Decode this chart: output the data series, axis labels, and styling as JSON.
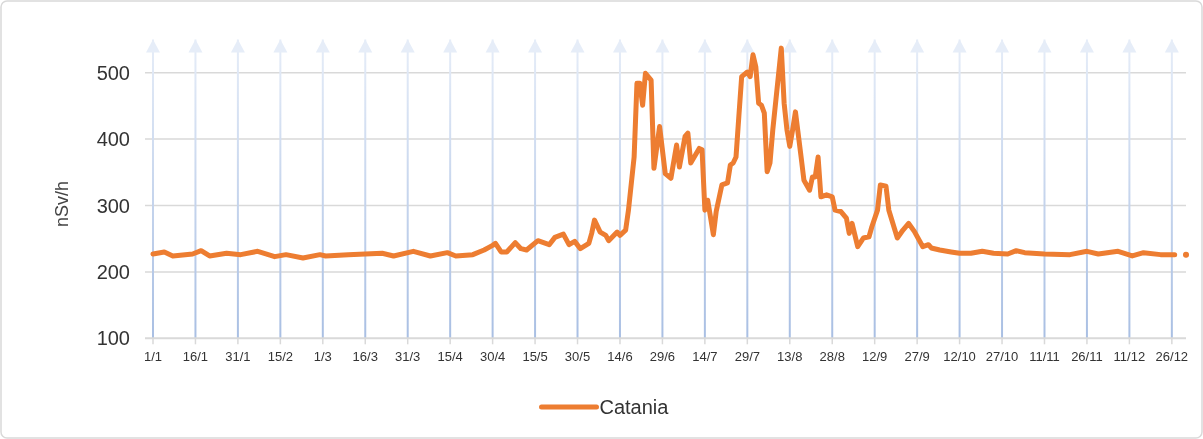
{
  "chart_data": {
    "type": "line",
    "ylabel": "nSv/h",
    "legend": "bottom",
    "grid": true,
    "line_style": "solid",
    "marker": "none",
    "xlim": [
      "--01-01",
      "--12-31"
    ],
    "ylim": [
      100,
      550
    ],
    "yticks": [
      100,
      200,
      300,
      400,
      500
    ],
    "xticks": [
      {
        "value": "--01-01",
        "label": "1/1"
      },
      {
        "value": "--01-16",
        "label": "16/1"
      },
      {
        "value": "--01-31",
        "label": "31/1"
      },
      {
        "value": "--02-15",
        "label": "15/2"
      },
      {
        "value": "--03-01",
        "label": "1/3"
      },
      {
        "value": "--03-16",
        "label": "16/3"
      },
      {
        "value": "--03-31",
        "label": "31/3"
      },
      {
        "value": "--04-15",
        "label": "15/4"
      },
      {
        "value": "--04-30",
        "label": "30/4"
      },
      {
        "value": "--05-15",
        "label": "15/5"
      },
      {
        "value": "--05-30",
        "label": "30/5"
      },
      {
        "value": "--06-14",
        "label": "14/6"
      },
      {
        "value": "--06-29",
        "label": "29/6"
      },
      {
        "value": "--07-14",
        "label": "14/7"
      },
      {
        "value": "--07-29",
        "label": "29/7"
      },
      {
        "value": "--08-13",
        "label": "13/8"
      },
      {
        "value": "--08-28",
        "label": "28/8"
      },
      {
        "value": "--09-12",
        "label": "12/9"
      },
      {
        "value": "--09-27",
        "label": "27/9"
      },
      {
        "value": "--10-12",
        "label": "12/10"
      },
      {
        "value": "--10-27",
        "label": "27/10"
      },
      {
        "value": "--11-11",
        "label": "11/11"
      },
      {
        "value": "--11-26",
        "label": "26/11"
      },
      {
        "value": "--12-11",
        "label": "11/12"
      },
      {
        "value": "--12-26",
        "label": "26/12"
      }
    ],
    "x": [
      "--01-01",
      "--01-05",
      "--01-08",
      "--01-15",
      "--01-18",
      "--01-21",
      "--01-27",
      "--02-01",
      "--02-07",
      "--02-13",
      "--02-17",
      "--02-23",
      "--02-29",
      "--03-02",
      "--03-10",
      "--03-22",
      "--03-26",
      "--04-02",
      "--04-08",
      "--04-14",
      "--04-17",
      "--04-23",
      "--04-27",
      "--04-30",
      "--05-01",
      "--05-03",
      "--05-05",
      "--05-08",
      "--05-10",
      "--05-12",
      "--05-16",
      "--05-20",
      "--05-22",
      "--05-25",
      "--05-27",
      "--05-29",
      "--05-31",
      "--06-03",
      "--06-04",
      "--06-05",
      "--06-07",
      "--06-09",
      "--06-10",
      "--06-13",
      "--06-14",
      "--06-16",
      "--06-17",
      "--06-19",
      "--06-20",
      "--06-21",
      "--06-22",
      "--06-23",
      "--06-25",
      "--06-26",
      "--06-28",
      "--06-30",
      "--07-02",
      "--07-04",
      "--07-05",
      "--07-07",
      "--07-08",
      "--07-09",
      "--07-12",
      "--07-13",
      "--07-14",
      "--07-15",
      "--07-17",
      "--07-18",
      "--07-20",
      "--07-22",
      "--07-23",
      "--07-24",
      "--07-25",
      "--07-26",
      "--07-27",
      "--07-29",
      "--07-30",
      "--07-31",
      "--08-01",
      "--08-02",
      "--08-03",
      "--08-04",
      "--08-05",
      "--08-06",
      "--08-07",
      "--08-09",
      "--08-10",
      "--08-11",
      "--08-12",
      "--08-13",
      "--08-14",
      "--08-15",
      "--08-17",
      "--08-18",
      "--08-20",
      "--08-21",
      "--08-22",
      "--08-23",
      "--08-24",
      "--08-26",
      "--08-28",
      "--08-29",
      "--08-31",
      "--09-02",
      "--09-03",
      "--09-04",
      "--09-06",
      "--09-08",
      "--09-10",
      "--09-11",
      "--09-13",
      "--09-14",
      "--09-16",
      "--09-17",
      "--09-20",
      "--09-22",
      "--09-24",
      "--09-26",
      "--09-29",
      "--10-01",
      "--10-02",
      "--10-05",
      "--10-09",
      "--10-12",
      "--10-16",
      "--10-20",
      "--10-24",
      "--10-29",
      "--11-01",
      "--11-04",
      "--11-11",
      "--11-20",
      "--11-26",
      "--11-30",
      "--12-07",
      "--12-12",
      "--12-16",
      "--12-22",
      "--12-27",
      "--12-29",
      "--12-31"
    ],
    "series": [
      {
        "name": "Catania",
        "color": "#ed7d31",
        "values": [
          227,
          230,
          224,
          227,
          232,
          224,
          228,
          226,
          231,
          223,
          226,
          221,
          226,
          224,
          226,
          228,
          224,
          231,
          224,
          229,
          224,
          226,
          233,
          240,
          243,
          230,
          230,
          244,
          235,
          233,
          247,
          241,
          252,
          257,
          241,
          246,
          235,
          243,
          258,
          278,
          260,
          255,
          247,
          260,
          255,
          263,
          293,
          373,
          484,
          484,
          451,
          499,
          489,
          356,
          419,
          348,
          341,
          391,
          358,
          404,
          409,
          364,
          386,
          384,
          293,
          308,
          256,
          291,
          331,
          334,
          361,
          364,
          373,
          434,
          494,
          501,
          494,
          527,
          509,
          454,
          451,
          439,
          351,
          364,
          414,
          496,
          537,
          454,
          414,
          389,
          414,
          441,
          373,
          338,
          323,
          343,
          343,
          373,
          313,
          316,
          313,
          293,
          291,
          281,
          258,
          273,
          238,
          251,
          253,
          268,
          293,
          331,
          329,
          293,
          251,
          263,
          273,
          261,
          238,
          241,
          236,
          233,
          230,
          228,
          228,
          231,
          228,
          227,
          232,
          229,
          227,
          226,
          231,
          227,
          231,
          224,
          229,
          226,
          226,
          null,
          226
        ]
      }
    ]
  }
}
